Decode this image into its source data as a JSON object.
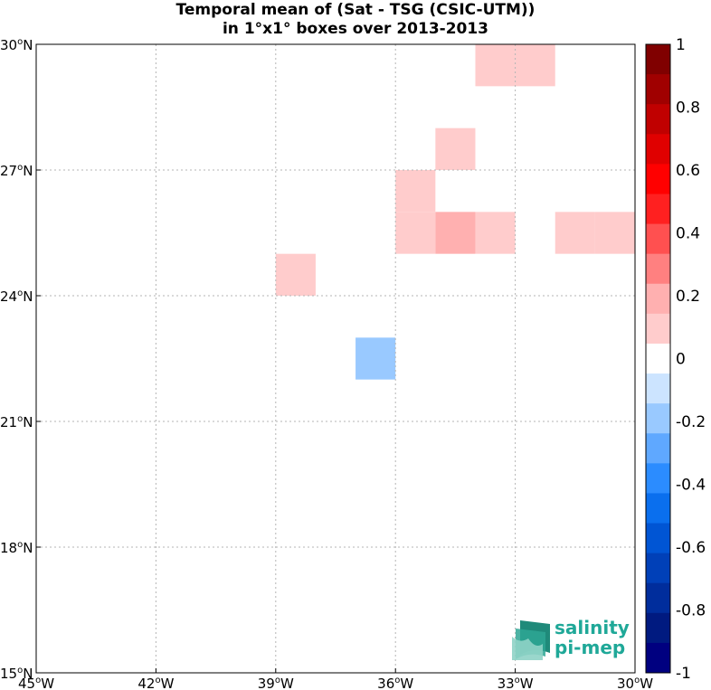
{
  "title": {
    "line1": "Temporal mean of (Sat - TSG (CSIC-UTM))",
    "line2": "in 1°x1° boxes over 2013-2013"
  },
  "logo": {
    "line1": "salinity",
    "line2": "pi-mep"
  },
  "chart_data": {
    "type": "heatmap",
    "title": "Temporal mean of (Sat - TSG (CSIC-UTM)) in 1°x1° boxes over 2013-2013",
    "xlim": [
      -45,
      -30
    ],
    "ylim": [
      15,
      30
    ],
    "x_ticks": [
      -45,
      -42,
      -39,
      -36,
      -33,
      -30
    ],
    "x_tick_labels": [
      "45",
      "42",
      "39",
      "36",
      "33",
      "30"
    ],
    "x_tick_suffix": "W",
    "y_ticks": [
      30,
      27,
      24,
      21,
      18,
      15
    ],
    "y_tick_labels": [
      "30",
      "27",
      "24",
      "21",
      "18",
      "15"
    ],
    "y_tick_suffix": "N",
    "degree_symbol": "o",
    "grid": true,
    "cell_size_deg": 1,
    "colorbar": {
      "range": [
        -1,
        1
      ],
      "step": 0.1,
      "tick_labels": [
        "1",
        "0.8",
        "0.6",
        "0.4",
        "0.2",
        "0",
        "-0.2",
        "-0.4",
        "-0.6",
        "-0.8",
        "-1"
      ],
      "colors": [
        "#800000",
        "#a00000",
        "#c00000",
        "#e00000",
        "#ff0000",
        "#ff2020",
        "#ff5050",
        "#ff8080",
        "#ffb0b0",
        "#ffcccc",
        "#ffffff",
        "#cce4ff",
        "#99c9ff",
        "#5fa8ff",
        "#2b8cff",
        "#0a6fee",
        "#0055d4",
        "#0040b8",
        "#002d9c",
        "#001a80",
        "#000080"
      ]
    },
    "cells": [
      {
        "lon": -34,
        "lat": 29,
        "value": 0.12
      },
      {
        "lon": -33,
        "lat": 29,
        "value": 0.12
      },
      {
        "lon": -35,
        "lat": 27,
        "value": 0.12
      },
      {
        "lon": -36,
        "lat": 26,
        "value": 0.12
      },
      {
        "lon": -36,
        "lat": 25,
        "value": 0.12
      },
      {
        "lon": -35,
        "lat": 25,
        "value": 0.25
      },
      {
        "lon": -34,
        "lat": 25,
        "value": 0.12
      },
      {
        "lon": -32,
        "lat": 25,
        "value": 0.12
      },
      {
        "lon": -31,
        "lat": 25,
        "value": 0.12
      },
      {
        "lon": -39,
        "lat": 24,
        "value": 0.12
      },
      {
        "lon": -37,
        "lat": 22,
        "value": -0.15
      }
    ]
  }
}
